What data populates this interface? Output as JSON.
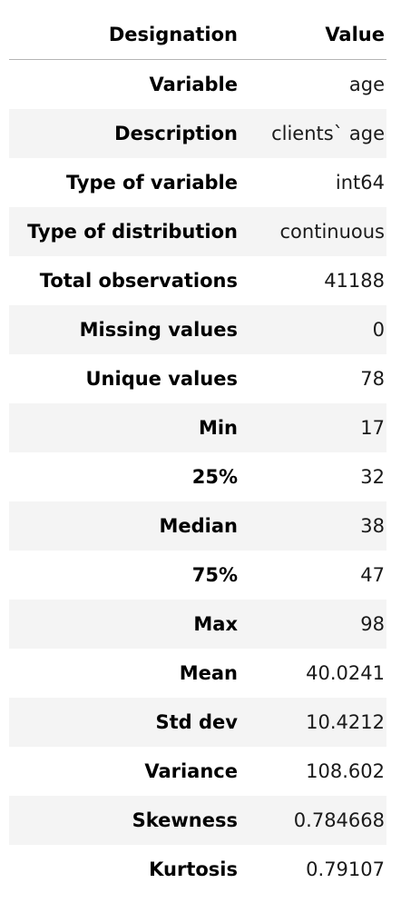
{
  "header": {
    "designation": "Designation",
    "value": "Value"
  },
  "rows": [
    {
      "designation": "Variable",
      "value": "age"
    },
    {
      "designation": "Description",
      "value": "clients` age"
    },
    {
      "designation": "Type of variable",
      "value": "int64"
    },
    {
      "designation": "Type of distribution",
      "value": "continuous"
    },
    {
      "designation": "Total observations",
      "value": "41188"
    },
    {
      "designation": "Missing values",
      "value": "0"
    },
    {
      "designation": "Unique values",
      "value": "78"
    },
    {
      "designation": "Min",
      "value": "17"
    },
    {
      "designation": "25%",
      "value": "32"
    },
    {
      "designation": "Median",
      "value": "38"
    },
    {
      "designation": "75%",
      "value": "47"
    },
    {
      "designation": "Max",
      "value": "98"
    },
    {
      "designation": "Mean",
      "value": "40.0241"
    },
    {
      "designation": "Std dev",
      "value": "10.4212"
    },
    {
      "designation": "Variance",
      "value": "108.602"
    },
    {
      "designation": "Skewness",
      "value": "0.784668"
    },
    {
      "designation": "Kurtosis",
      "value": "0.79107"
    }
  ],
  "colors": {
    "stripe": "#f4f4f4",
    "header_rule": "#b5b5b5",
    "text": "#000000"
  }
}
